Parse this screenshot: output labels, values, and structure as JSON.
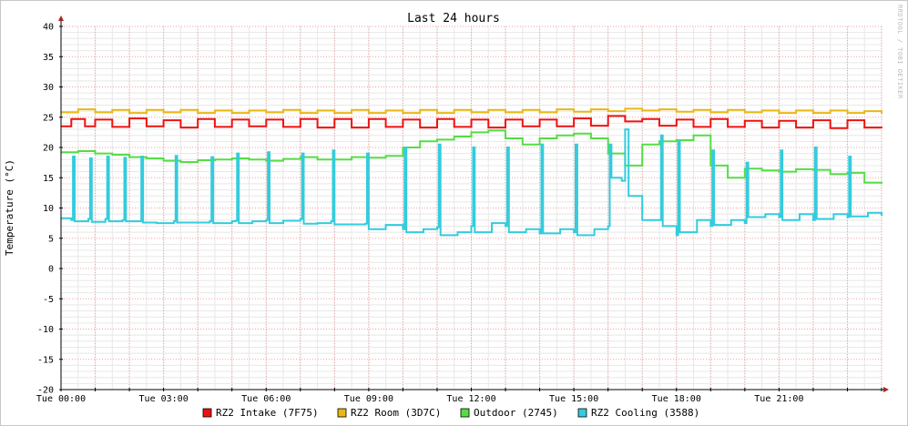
{
  "chart_data": {
    "type": "line",
    "title": "Last 24 hours",
    "ylabel": "Temperature (°C)",
    "watermark": "RRDTOOL / TOBI OETIKER",
    "ylim": [
      -20,
      40
    ],
    "yticks": [
      40,
      35,
      30,
      25,
      20,
      15,
      10,
      5,
      0,
      -5,
      -10,
      -15,
      -20
    ],
    "xlim": [
      0,
      24
    ],
    "xticks": [
      {
        "h": 0,
        "label": "Tue 00:00"
      },
      {
        "h": 3,
        "label": "Tue 03:00"
      },
      {
        "h": 6,
        "label": "Tue 06:00"
      },
      {
        "h": 9,
        "label": "Tue 09:00"
      },
      {
        "h": 12,
        "label": "Tue 12:00"
      },
      {
        "h": 15,
        "label": "Tue 15:00"
      },
      {
        "h": 18,
        "label": "Tue 18:00"
      },
      {
        "h": 21,
        "label": "Tue 21:00"
      }
    ],
    "grid": true,
    "legend_position": "bottom",
    "series": [
      {
        "name": "RZ2 Intake (7F75)",
        "color": "#ee1111",
        "x": [
          0,
          0.3,
          0.7,
          1,
          1.5,
          2,
          2.5,
          3,
          3.5,
          4,
          4.5,
          5,
          5.5,
          6,
          6.5,
          7,
          7.5,
          8,
          8.5,
          9,
          9.5,
          10,
          10.5,
          11,
          11.5,
          12,
          12.5,
          13,
          13.5,
          14,
          14.5,
          15,
          15.5,
          16,
          16.5,
          17,
          17.5,
          18,
          18.5,
          19,
          19.5,
          20,
          20.5,
          21,
          21.5,
          22,
          22.5,
          23,
          23.5,
          24
        ],
        "y": [
          23.5,
          24.7,
          23.5,
          24.6,
          23.4,
          24.8,
          23.5,
          24.5,
          23.3,
          24.7,
          23.4,
          24.6,
          23.5,
          24.6,
          23.4,
          24.7,
          23.3,
          24.7,
          23.3,
          24.7,
          23.4,
          24.6,
          23.3,
          24.7,
          23.4,
          24.6,
          23.3,
          24.6,
          23.5,
          24.6,
          23.5,
          24.8,
          23.6,
          25.2,
          24.3,
          24.7,
          23.6,
          24.6,
          23.4,
          24.7,
          23.4,
          24.4,
          23.3,
          24.4,
          23.3,
          24.5,
          23.2,
          24.5,
          23.3,
          23.2
        ]
      },
      {
        "name": "RZ2 Room (3D7C)",
        "color": "#e8b815",
        "x": [
          0,
          0.5,
          1,
          1.5,
          2,
          2.5,
          3,
          3.5,
          4,
          4.5,
          5,
          5.5,
          6,
          6.5,
          7,
          7.5,
          8,
          8.5,
          9,
          9.5,
          10,
          10.5,
          11,
          11.5,
          12,
          12.5,
          13,
          13.5,
          14,
          14.5,
          15,
          15.5,
          16,
          16.5,
          17,
          17.5,
          18,
          18.5,
          19,
          19.5,
          20,
          20.5,
          21,
          21.5,
          22,
          22.5,
          23,
          23.5,
          24
        ],
        "y": [
          25.8,
          26.3,
          25.8,
          26.2,
          25.7,
          26.2,
          25.8,
          26.2,
          25.7,
          26.1,
          25.7,
          26.1,
          25.8,
          26.2,
          25.7,
          26.1,
          25.7,
          26.2,
          25.7,
          26.1,
          25.7,
          26.2,
          25.7,
          26.2,
          25.8,
          26.2,
          25.8,
          26.2,
          25.8,
          26.3,
          25.9,
          26.3,
          26.0,
          26.4,
          26.1,
          26.3,
          25.9,
          26.2,
          25.8,
          26.2,
          25.8,
          26.1,
          25.7,
          26.1,
          25.7,
          26.1,
          25.7,
          26.0,
          25.6
        ]
      },
      {
        "name": "Outdoor (2745)",
        "color": "#55dd44",
        "x": [
          0,
          0.5,
          1,
          1.5,
          2,
          2.5,
          3,
          3.5,
          4,
          4.5,
          5,
          5.5,
          6,
          6.5,
          7,
          7.5,
          8,
          8.5,
          9,
          9.5,
          10,
          10.5,
          11,
          11.5,
          12,
          12.5,
          13,
          13.5,
          14,
          14.5,
          15,
          15.5,
          16,
          16.5,
          17,
          17.5,
          18,
          18.5,
          19,
          19.5,
          20,
          20.5,
          21,
          21.5,
          22,
          22.5,
          23,
          23.5,
          24
        ],
        "y": [
          19.2,
          19.4,
          19.0,
          18.8,
          18.4,
          18.2,
          17.8,
          17.6,
          17.9,
          18.0,
          18.2,
          18.0,
          17.8,
          18.1,
          18.4,
          18.0,
          18.0,
          18.4,
          18.3,
          18.6,
          20.0,
          21.0,
          21.3,
          21.8,
          22.5,
          22.8,
          21.5,
          20.5,
          21.5,
          22.0,
          22.3,
          21.5,
          19.0,
          17.0,
          20.5,
          21.0,
          21.2,
          22.0,
          17.0,
          15.0,
          16.5,
          16.2,
          16.0,
          16.4,
          16.3,
          15.6,
          15.8,
          14.2,
          14.0
        ]
      },
      {
        "name": "RZ2 Cooling (3588)",
        "color": "#33ccdd",
        "x": [
          0,
          0.3,
          0.35,
          0.4,
          0.8,
          0.85,
          0.9,
          1.3,
          1.35,
          1.4,
          1.8,
          1.85,
          1.9,
          2.3,
          2.35,
          2.4,
          2.8,
          3.3,
          3.35,
          3.4,
          4.0,
          4.35,
          4.4,
          4.45,
          5.0,
          5.1,
          5.15,
          5.2,
          5.6,
          6.0,
          6.05,
          6.1,
          6.5,
          7.0,
          7.05,
          7.1,
          7.5,
          7.9,
          7.95,
          8.0,
          8.5,
          8.9,
          8.95,
          9.0,
          9.5,
          10.0,
          10.05,
          10.1,
          10.6,
          11.0,
          11.05,
          11.1,
          11.6,
          12.0,
          12.05,
          12.1,
          12.6,
          13.0,
          13.05,
          13.1,
          13.6,
          14.0,
          14.05,
          14.1,
          14.6,
          15.0,
          15.05,
          15.1,
          15.6,
          16.0,
          16.05,
          16.1,
          16.4,
          16.5,
          16.6,
          17.0,
          17.5,
          17.55,
          17.6,
          18.0,
          18.05,
          18.1,
          18.6,
          19.0,
          19.05,
          19.1,
          19.6,
          20.0,
          20.05,
          20.1,
          20.6,
          21.0,
          21.05,
          21.1,
          21.6,
          22.0,
          22.05,
          22.1,
          22.6,
          23.0,
          23.05,
          23.1,
          23.6,
          24.0
        ],
        "y": [
          8.3,
          8.0,
          18.5,
          7.8,
          8.2,
          18.2,
          7.7,
          8.2,
          18.5,
          7.8,
          8.0,
          18.3,
          7.8,
          7.8,
          18.5,
          7.6,
          7.5,
          7.8,
          18.6,
          7.6,
          7.6,
          7.8,
          18.4,
          7.5,
          7.8,
          7.9,
          19.0,
          7.5,
          7.8,
          8.0,
          19.2,
          7.5,
          7.9,
          8.2,
          19.0,
          7.4,
          7.5,
          7.8,
          19.5,
          7.3,
          7.3,
          7.4,
          19.0,
          6.5,
          7.2,
          6.5,
          20.0,
          6.0,
          6.5,
          6.8,
          20.5,
          5.5,
          6.0,
          7.0,
          20.0,
          6.0,
          7.5,
          7.0,
          20.0,
          6.0,
          6.5,
          5.8,
          20.5,
          5.8,
          6.5,
          6.0,
          20.5,
          5.5,
          6.5,
          7.0,
          20.5,
          15.0,
          14.5,
          23.0,
          12.0,
          8.0,
          8.0,
          22.0,
          7.0,
          5.5,
          21.0,
          6.0,
          8.0,
          7.0,
          19.5,
          7.2,
          8.0,
          7.5,
          17.5,
          8.5,
          9.0,
          8.5,
          19.5,
          8.0,
          9.0,
          8.0,
          20.0,
          8.2,
          9.0,
          8.5,
          18.5,
          8.6,
          9.2,
          8.7
        ]
      }
    ]
  }
}
